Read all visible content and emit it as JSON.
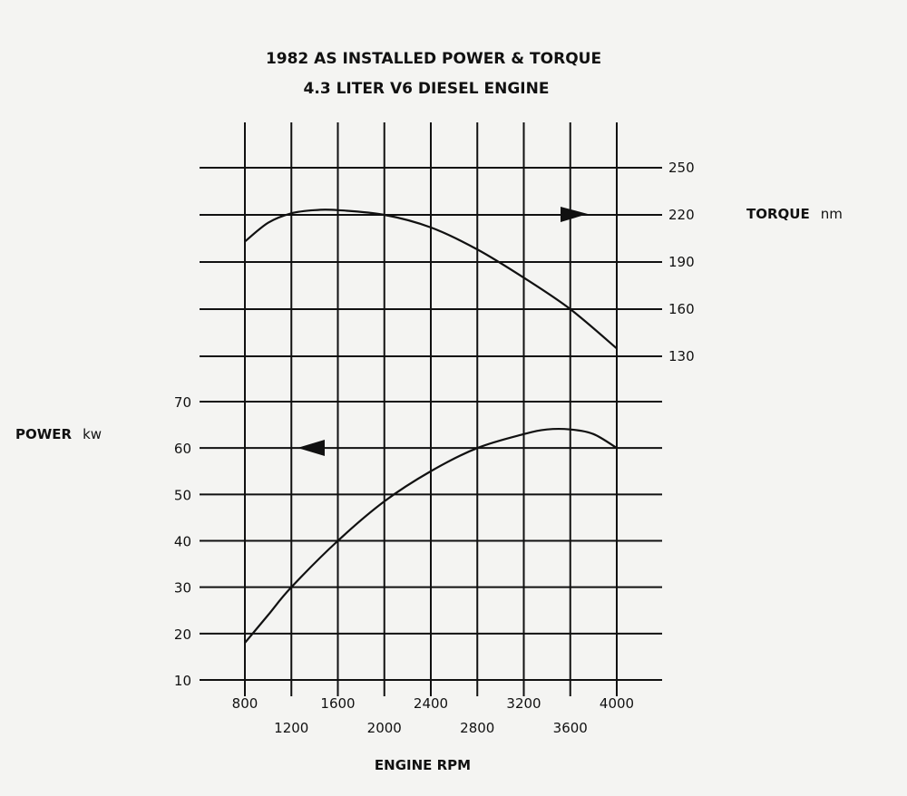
{
  "chart_data": {
    "type": "line",
    "title": "1982 AS INSTALLED POWER & TORQUE",
    "subtitle": "4.3 LITER V6 DIESEL ENGINE",
    "xlabel": "ENGINE RPM",
    "xlim": [
      800,
      4000
    ],
    "x_ticks_upper": [
      "800",
      "1600",
      "2400",
      "3200",
      "4000"
    ],
    "x_ticks_lower": [
      "1200",
      "2000",
      "2800",
      "3600"
    ],
    "grid": true,
    "axes": {
      "power": {
        "label_name": "POWER",
        "label_unit": "kw",
        "ylim": [
          10,
          70
        ],
        "ticks": [
          "70",
          "60",
          "50",
          "40",
          "30",
          "20",
          "10"
        ]
      },
      "torque": {
        "label_name": "TORQUE",
        "label_unit": "nm",
        "ticks": [
          "250",
          "220",
          "190",
          "160",
          "130"
        ]
      }
    },
    "series": [
      {
        "axis": "torque",
        "x": [
          800,
          1000,
          1200,
          1400,
          1600,
          2000,
          2400,
          2800,
          3200,
          3600,
          4000
        ],
        "values": [
          203,
          215,
          221,
          223,
          223,
          220,
          212,
          198,
          180,
          160,
          135
        ]
      },
      {
        "axis": "power",
        "x": [
          800,
          1000,
          1200,
          1600,
          2000,
          2400,
          2800,
          3200,
          3400,
          3600,
          3800,
          4000
        ],
        "values": [
          18,
          24,
          30,
          40,
          48.5,
          55,
          60,
          63,
          64,
          64,
          63,
          60
        ]
      }
    ]
  }
}
